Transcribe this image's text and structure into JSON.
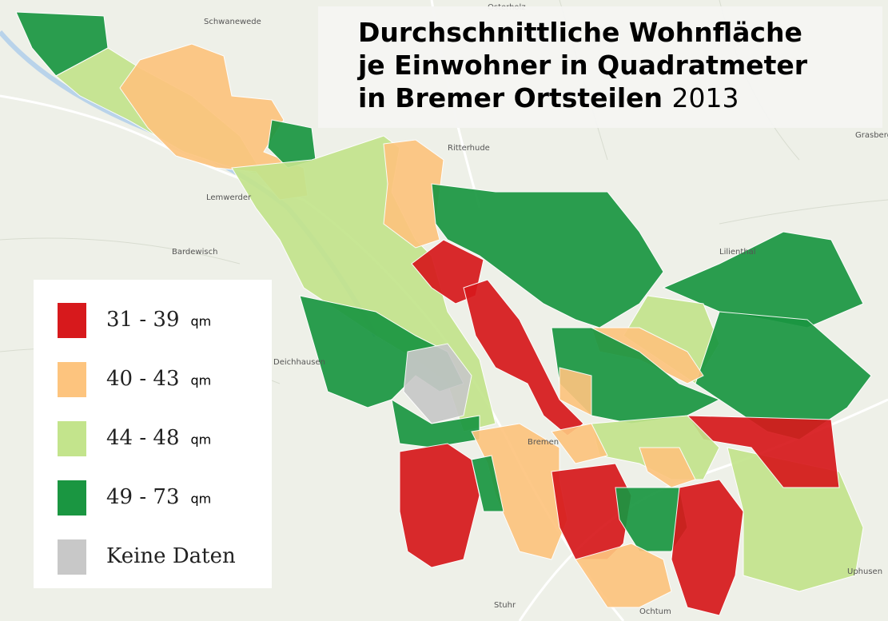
{
  "header": {
    "title_lines": [
      "Durchschnittliche Wohnfläche",
      "je Einwohner in Quadratmeter",
      "in Bremer Ortsteilen"
    ],
    "year": "2013"
  },
  "legend": {
    "items": [
      {
        "label": "31 - 39",
        "unit": "qm",
        "color": "#d7191c"
      },
      {
        "label": "40 - 43",
        "unit": "qm",
        "color": "#fdc47e"
      },
      {
        "label": "44 - 48",
        "unit": "qm",
        "color": "#c3e48c"
      },
      {
        "label": "49 - 73",
        "unit": "qm",
        "color": "#1a9641"
      },
      {
        "label": "Keine Daten",
        "color": "#c8c8c8"
      }
    ]
  },
  "map": {
    "labels": [
      "Osterholz",
      "Schwanewede",
      "Ritterhude",
      "Lemwerder",
      "Bardewisch",
      "Deichhausen",
      "Lilienthal",
      "Bremen",
      "Ochtum",
      "Stuhr",
      "Uphusen",
      "Grasberg"
    ]
  }
}
